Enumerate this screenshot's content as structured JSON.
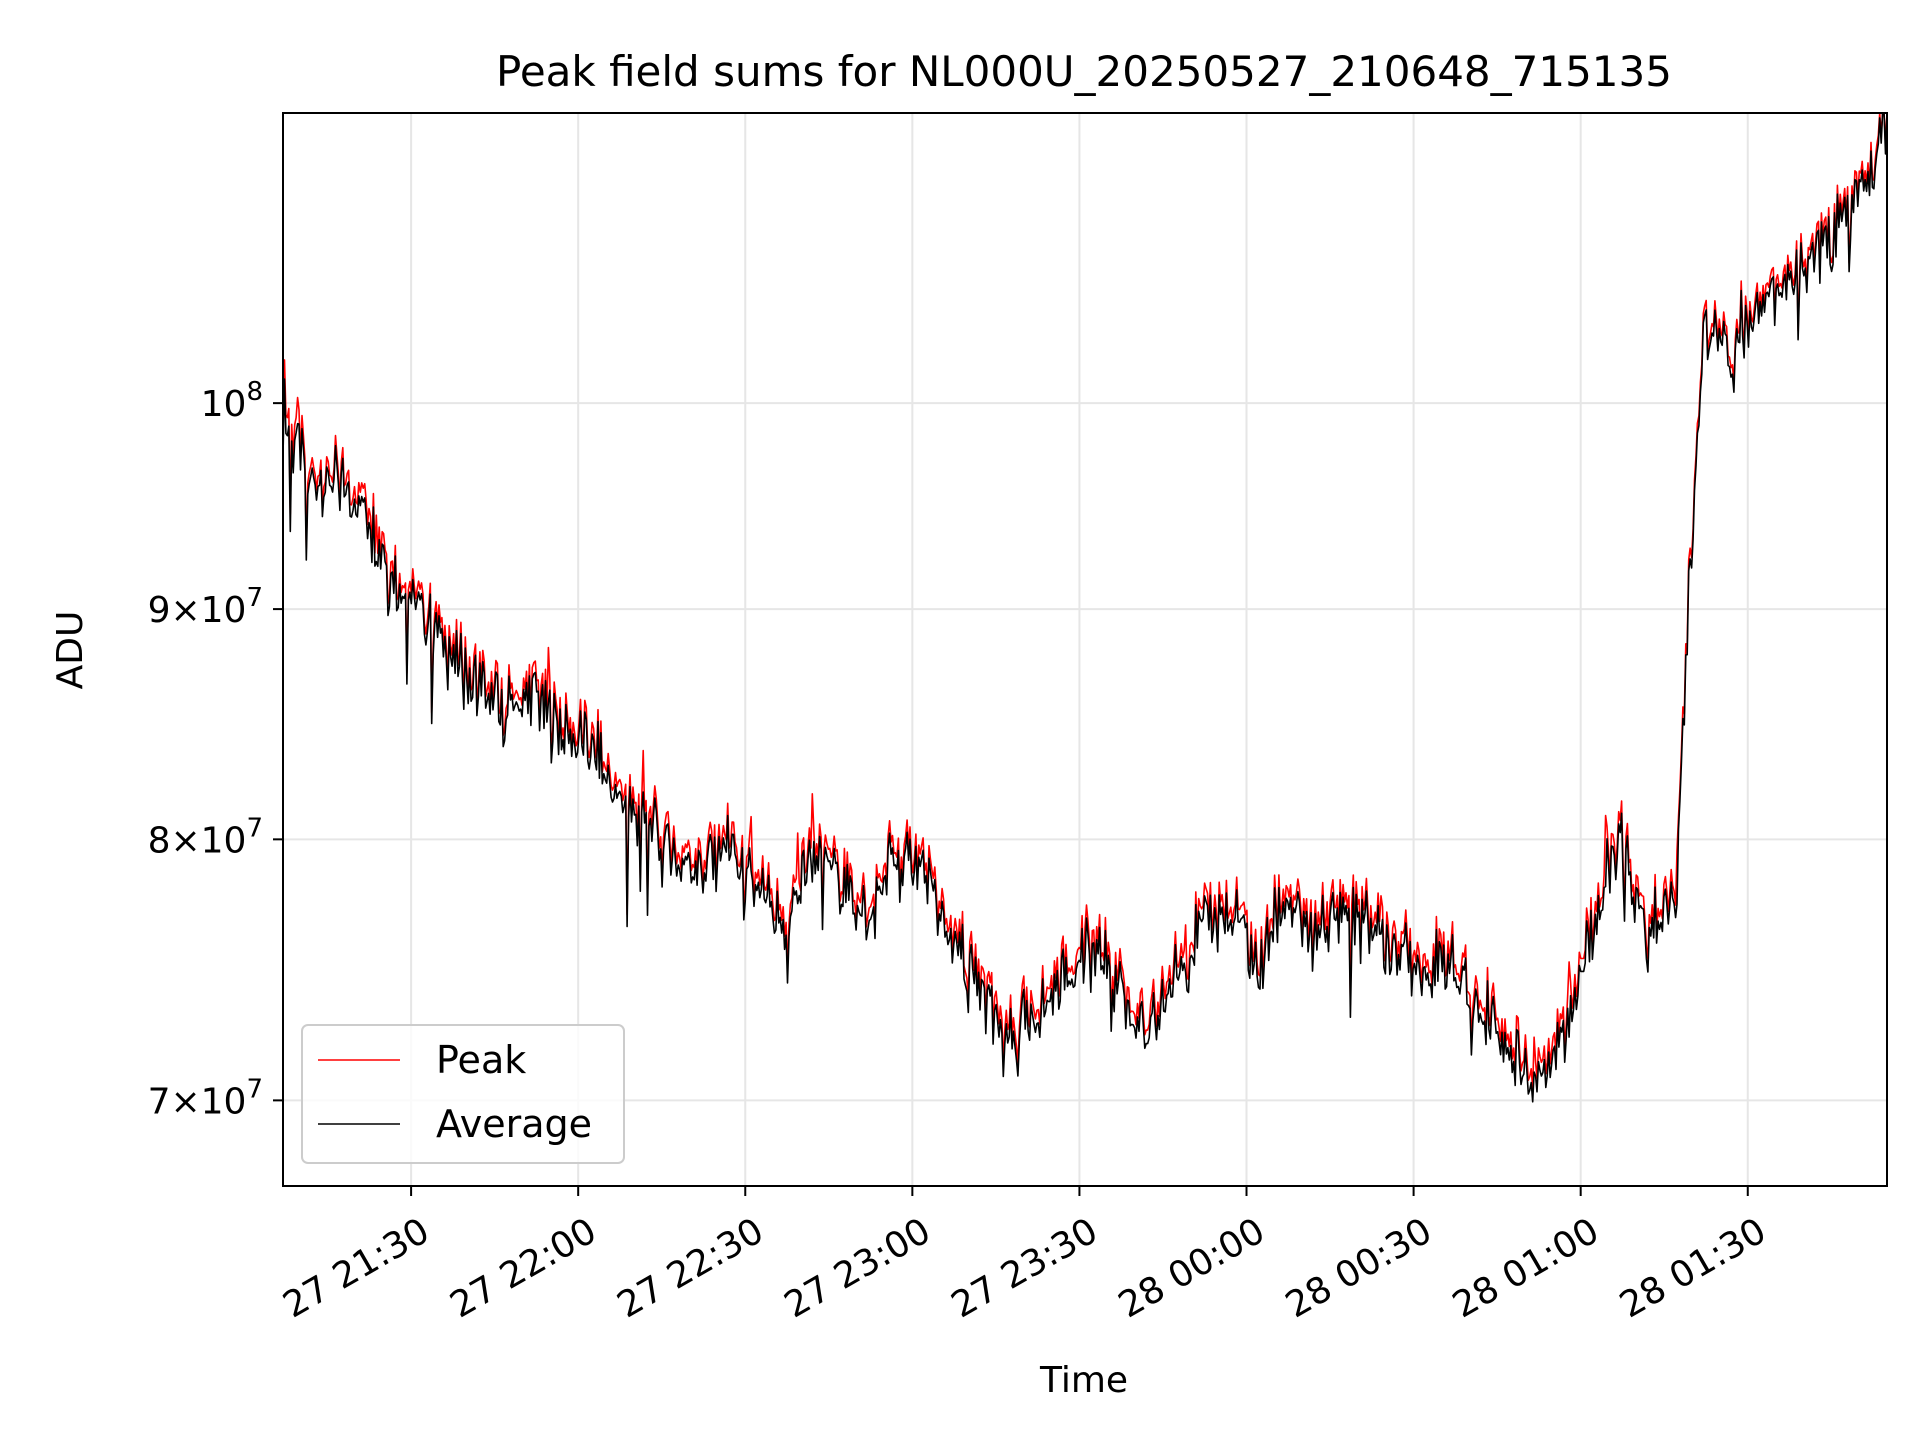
{
  "chart_data": {
    "type": "line",
    "title": "Peak field sums for NL000U_20250527_210648_715135",
    "xlabel": "Time",
    "ylabel": "ADU",
    "y_scale": "log",
    "grid": true,
    "legend_position": "lower-left",
    "x_tick_labels": [
      "27 21:30",
      "27 22:00",
      "27 22:30",
      "27 23:00",
      "27 23:30",
      "28 00:00",
      "28 00:30",
      "28 01:00",
      "28 01:30"
    ],
    "y_ticks": [
      {
        "base": "10",
        "exp": "8",
        "mant": ""
      },
      {
        "base": "10",
        "exp": "7",
        "mant": "9"
      },
      {
        "base": "10",
        "exp": "7",
        "mant": "8"
      },
      {
        "base": "10",
        "exp": "7",
        "mant": "7"
      }
    ],
    "xlim": [
      "2025-05-27 21:07",
      "2025-05-28 01:55"
    ],
    "ylim": [
      67000000,
      116000000
    ],
    "x": [
      "21:07",
      "21:12",
      "21:17",
      "21:22",
      "21:27",
      "21:32",
      "21:37",
      "21:42",
      "21:47",
      "21:52",
      "21:57",
      "22:02",
      "22:07",
      "22:12",
      "22:17",
      "22:22",
      "22:27",
      "22:32",
      "22:37",
      "22:42",
      "22:47",
      "22:52",
      "22:57",
      "23:02",
      "23:07",
      "23:12",
      "23:17",
      "23:22",
      "23:27",
      "23:32",
      "23:37",
      "23:42",
      "23:47",
      "23:52",
      "23:57",
      "00:02",
      "00:07",
      "00:12",
      "00:17",
      "00:22",
      "00:27",
      "00:32",
      "00:37",
      "00:42",
      "00:47",
      "00:52",
      "00:57",
      "01:02",
      "01:07",
      "01:12",
      "01:17",
      "01:22",
      "01:27",
      "01:32",
      "01:37",
      "01:42",
      "01:47",
      "01:52",
      "01:55"
    ],
    "series": [
      {
        "name": "Peak",
        "color": "#ff0000",
        "values": [
          100500000,
          96500000,
          97000000,
          95200000,
          92000000,
          90500000,
          88500000,
          87000000,
          85800000,
          86500000,
          85000000,
          84500000,
          82000000,
          81500000,
          80000000,
          79300000,
          80500000,
          78500000,
          76500000,
          80000000,
          79000000,
          77000000,
          80000000,
          79000000,
          76500000,
          74500000,
          72500000,
          73500000,
          75000000,
          76000000,
          75000000,
          72500000,
          75000000,
          77000000,
          77500000,
          75500000,
          78000000,
          76500000,
          77500000,
          77000000,
          76000000,
          75500000,
          75500000,
          74000000,
          72500000,
          71000000,
          73000000,
          77000000,
          80500000,
          76500000,
          78000000,
          104500000,
          103500000,
          106000000,
          106500000,
          108500000,
          110000000,
          113000000,
          116000000
        ]
      },
      {
        "name": "Average",
        "color": "#000000",
        "values": [
          99500000,
          96000000,
          96500000,
          94500000,
          91500000,
          90000000,
          88000000,
          86500000,
          85300000,
          86000000,
          84500000,
          84000000,
          81500000,
          81000000,
          79500000,
          78800000,
          80000000,
          78000000,
          76000000,
          79500000,
          78500000,
          76500000,
          79500000,
          78500000,
          76000000,
          74000000,
          72000000,
          73000000,
          74500000,
          75500000,
          74500000,
          72000000,
          74500000,
          76500000,
          77000000,
          75000000,
          77500000,
          76000000,
          77000000,
          76500000,
          75500000,
          75000000,
          75000000,
          73500000,
          72000000,
          70500000,
          72500000,
          76500000,
          80000000,
          76000000,
          77500000,
          104000000,
          103000000,
          105500000,
          106000000,
          108000000,
          109500000,
          112500000,
          115500000
        ]
      }
    ]
  }
}
